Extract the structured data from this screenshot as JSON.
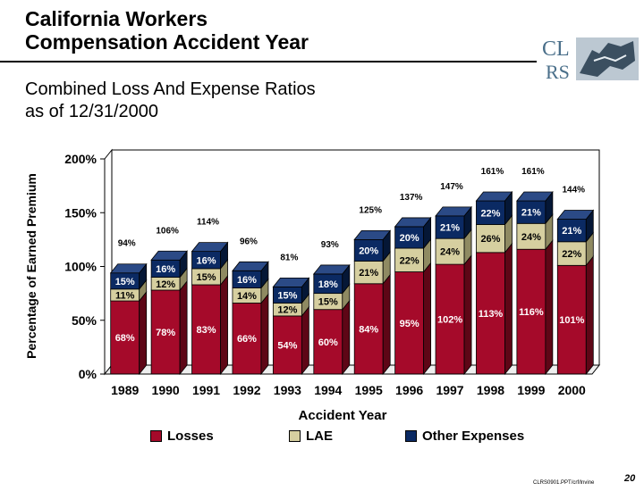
{
  "header": {
    "title_line1": "California Workers",
    "title_line2": "Compensation Accident Year",
    "subtitle_line1": "Combined Loss And Expense Ratios",
    "subtitle_line2": "as of 12/31/2000"
  },
  "logo": {
    "top_text": "CL",
    "bottom_text": "RS"
  },
  "footer": {
    "file_ref": "CLRS0901.PPT/crf/lnvine",
    "page_number": "20"
  },
  "colors": {
    "losses": "#a50a2a",
    "lae": "#d6cfa0",
    "other": "#0b2a63",
    "background_wall": "#ffffff"
  },
  "chart_data": {
    "type": "bar",
    "stacked": true,
    "title": "",
    "xlabel": "Accident Year",
    "ylabel": "Percentage of Earned Premium",
    "ylim": [
      0,
      200
    ],
    "yticks": [
      "0%",
      "50%",
      "100%",
      "150%",
      "200%"
    ],
    "ytick_values": [
      0,
      50,
      100,
      150,
      200
    ],
    "categories": [
      "1989",
      "1990",
      "1991",
      "1992",
      "1993",
      "1994",
      "1995",
      "1996",
      "1997",
      "1998",
      "1999",
      "2000"
    ],
    "series": [
      {
        "name": "Losses",
        "values": [
          68,
          78,
          83,
          66,
          54,
          60,
          84,
          95,
          102,
          113,
          116,
          101
        ],
        "labels": [
          "68%",
          "78%",
          "83%",
          "66%",
          "54%",
          "60%",
          "84%",
          "95%",
          "102%",
          "113%",
          "116%",
          "101%"
        ]
      },
      {
        "name": "LAE",
        "values": [
          11,
          12,
          15,
          14,
          12,
          15,
          21,
          22,
          24,
          26,
          24,
          22
        ],
        "labels": [
          "11%",
          "12%",
          "15%",
          "14%",
          "12%",
          "15%",
          "21%",
          "22%",
          "24%",
          "26%",
          "24%",
          "22%"
        ]
      },
      {
        "name": "Other Expenses",
        "values": [
          15,
          16,
          16,
          16,
          15,
          18,
          20,
          20,
          21,
          22,
          21,
          21
        ],
        "labels": [
          "15%",
          "16%",
          "16%",
          "16%",
          "15%",
          "18%",
          "20%",
          "20%",
          "21%",
          "22%",
          "21%",
          "21%"
        ]
      }
    ],
    "totals": [
      94,
      106,
      114,
      96,
      81,
      93,
      125,
      137,
      147,
      161,
      161,
      144
    ],
    "total_labels": [
      "94%",
      "106%",
      "114%",
      "96%",
      "81%",
      "93%",
      "125%",
      "137%",
      "147%",
      "161%",
      "161%",
      "144%"
    ],
    "legend_position": "bottom",
    "grid": false
  }
}
